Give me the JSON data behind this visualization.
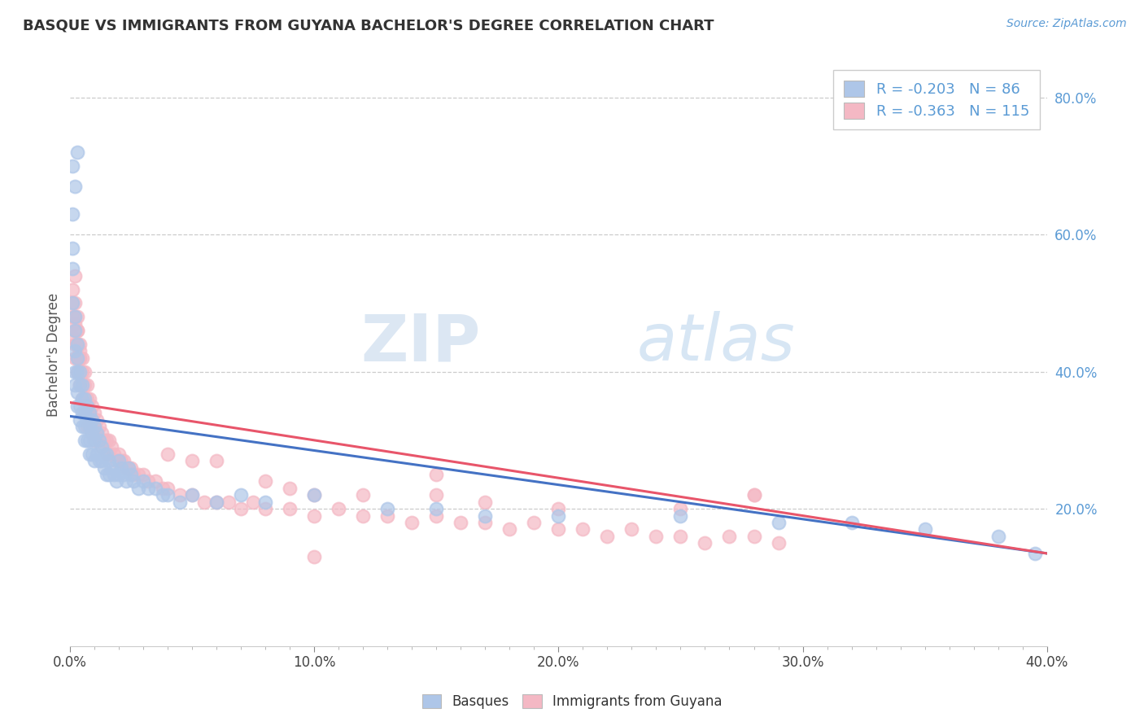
{
  "title": "BASQUE VS IMMIGRANTS FROM GUYANA BACHELOR'S DEGREE CORRELATION CHART",
  "source_text": "Source: ZipAtlas.com",
  "ylabel": "Bachelor's Degree",
  "xlim": [
    0.0,
    0.4
  ],
  "ylim": [
    0.0,
    0.85
  ],
  "x_ticks": [
    0.0,
    0.1,
    0.2,
    0.3,
    0.4
  ],
  "x_tick_labels": [
    "0.0%",
    "10.0%",
    "20.0%",
    "30.0%",
    "40.0%"
  ],
  "y_ticks_right": [
    0.2,
    0.4,
    0.6,
    0.8
  ],
  "y_tick_labels_right": [
    "20.0%",
    "40.0%",
    "60.0%",
    "80.0%"
  ],
  "basque_color": "#aec6e8",
  "guyana_color": "#f4b8c4",
  "basque_line_color": "#4472c4",
  "guyana_line_color": "#e8556a",
  "R_basque": -0.203,
  "N_basque": 86,
  "R_guyana": -0.363,
  "N_guyana": 115,
  "legend_label_1": "Basques",
  "legend_label_2": "Immigrants from Guyana",
  "watermark_zip": "ZIP",
  "watermark_atlas": "atlas",
  "background_color": "#ffffff",
  "basque_scatter_x": [
    0.001,
    0.001,
    0.001,
    0.001,
    0.002,
    0.002,
    0.002,
    0.002,
    0.002,
    0.003,
    0.003,
    0.003,
    0.003,
    0.003,
    0.004,
    0.004,
    0.004,
    0.004,
    0.005,
    0.005,
    0.005,
    0.005,
    0.006,
    0.006,
    0.006,
    0.006,
    0.007,
    0.007,
    0.007,
    0.008,
    0.008,
    0.008,
    0.008,
    0.009,
    0.009,
    0.009,
    0.01,
    0.01,
    0.01,
    0.011,
    0.011,
    0.012,
    0.012,
    0.013,
    0.013,
    0.014,
    0.014,
    0.015,
    0.015,
    0.016,
    0.016,
    0.017,
    0.018,
    0.019,
    0.02,
    0.02,
    0.021,
    0.022,
    0.023,
    0.024,
    0.025,
    0.026,
    0.028,
    0.03,
    0.032,
    0.035,
    0.038,
    0.04,
    0.045,
    0.05,
    0.06,
    0.07,
    0.08,
    0.1,
    0.13,
    0.15,
    0.17,
    0.2,
    0.25,
    0.29,
    0.32,
    0.35,
    0.38,
    0.395,
    0.001,
    0.002,
    0.003
  ],
  "basque_scatter_y": [
    0.63,
    0.58,
    0.55,
    0.5,
    0.48,
    0.46,
    0.43,
    0.4,
    0.38,
    0.44,
    0.42,
    0.4,
    0.37,
    0.35,
    0.4,
    0.38,
    0.35,
    0.33,
    0.38,
    0.36,
    0.34,
    0.32,
    0.36,
    0.34,
    0.32,
    0.3,
    0.35,
    0.33,
    0.3,
    0.34,
    0.32,
    0.3,
    0.28,
    0.33,
    0.31,
    0.28,
    0.32,
    0.3,
    0.27,
    0.31,
    0.28,
    0.3,
    0.27,
    0.29,
    0.27,
    0.28,
    0.26,
    0.28,
    0.25,
    0.27,
    0.25,
    0.26,
    0.25,
    0.24,
    0.27,
    0.25,
    0.26,
    0.25,
    0.24,
    0.26,
    0.25,
    0.24,
    0.23,
    0.24,
    0.23,
    0.23,
    0.22,
    0.22,
    0.21,
    0.22,
    0.21,
    0.22,
    0.21,
    0.22,
    0.2,
    0.2,
    0.19,
    0.19,
    0.19,
    0.18,
    0.18,
    0.17,
    0.16,
    0.135,
    0.7,
    0.67,
    0.72
  ],
  "guyana_scatter_x": [
    0.001,
    0.001,
    0.001,
    0.002,
    0.002,
    0.002,
    0.002,
    0.003,
    0.003,
    0.003,
    0.003,
    0.004,
    0.004,
    0.004,
    0.004,
    0.005,
    0.005,
    0.005,
    0.005,
    0.006,
    0.006,
    0.006,
    0.006,
    0.007,
    0.007,
    0.007,
    0.007,
    0.008,
    0.008,
    0.008,
    0.009,
    0.009,
    0.009,
    0.01,
    0.01,
    0.01,
    0.011,
    0.011,
    0.012,
    0.012,
    0.013,
    0.013,
    0.014,
    0.015,
    0.015,
    0.016,
    0.016,
    0.017,
    0.018,
    0.019,
    0.02,
    0.021,
    0.022,
    0.023,
    0.024,
    0.025,
    0.026,
    0.028,
    0.03,
    0.032,
    0.035,
    0.038,
    0.04,
    0.045,
    0.05,
    0.055,
    0.06,
    0.065,
    0.07,
    0.075,
    0.08,
    0.09,
    0.1,
    0.11,
    0.12,
    0.13,
    0.14,
    0.15,
    0.16,
    0.17,
    0.18,
    0.19,
    0.2,
    0.21,
    0.22,
    0.23,
    0.24,
    0.25,
    0.26,
    0.27,
    0.28,
    0.29,
    0.001,
    0.002,
    0.002,
    0.003,
    0.003,
    0.004,
    0.04,
    0.05,
    0.06,
    0.08,
    0.09,
    0.1,
    0.12,
    0.15,
    0.17,
    0.2,
    0.25,
    0.28,
    0.002,
    0.003,
    0.004,
    0.15,
    0.28,
    0.1
  ],
  "guyana_scatter_y": [
    0.5,
    0.48,
    0.45,
    0.48,
    0.46,
    0.44,
    0.42,
    0.46,
    0.44,
    0.42,
    0.4,
    0.44,
    0.42,
    0.4,
    0.38,
    0.42,
    0.4,
    0.38,
    0.36,
    0.4,
    0.38,
    0.36,
    0.34,
    0.38,
    0.36,
    0.34,
    0.32,
    0.36,
    0.34,
    0.32,
    0.35,
    0.33,
    0.31,
    0.34,
    0.32,
    0.3,
    0.33,
    0.31,
    0.32,
    0.3,
    0.31,
    0.29,
    0.3,
    0.3,
    0.28,
    0.3,
    0.28,
    0.29,
    0.28,
    0.27,
    0.28,
    0.27,
    0.27,
    0.26,
    0.26,
    0.26,
    0.25,
    0.25,
    0.25,
    0.24,
    0.24,
    0.23,
    0.23,
    0.22,
    0.22,
    0.21,
    0.21,
    0.21,
    0.2,
    0.21,
    0.2,
    0.2,
    0.19,
    0.2,
    0.19,
    0.19,
    0.18,
    0.19,
    0.18,
    0.18,
    0.17,
    0.18,
    0.17,
    0.17,
    0.16,
    0.17,
    0.16,
    0.16,
    0.15,
    0.16,
    0.16,
    0.15,
    0.52,
    0.5,
    0.47,
    0.46,
    0.44,
    0.42,
    0.28,
    0.27,
    0.27,
    0.24,
    0.23,
    0.22,
    0.22,
    0.22,
    0.21,
    0.2,
    0.2,
    0.22,
    0.54,
    0.48,
    0.43,
    0.25,
    0.22,
    0.13
  ]
}
